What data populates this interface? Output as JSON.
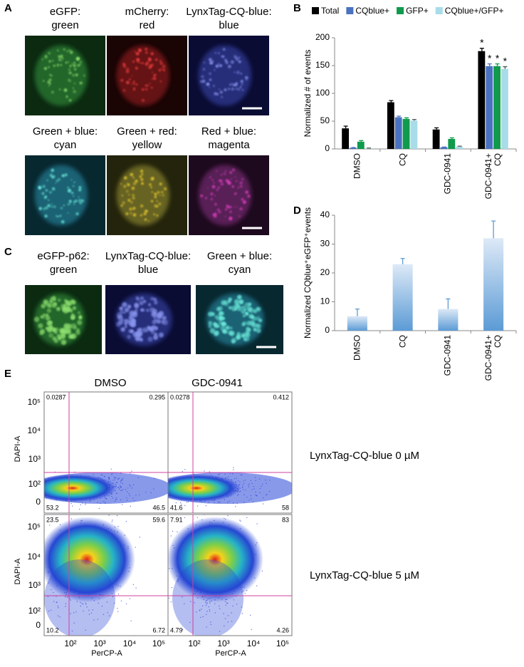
{
  "panels": {
    "a": "A",
    "b": "B",
    "c": "C",
    "d": "D",
    "e": "E"
  },
  "panel_a": {
    "labels": [
      [
        "eGFP:",
        "green"
      ],
      [
        "mCherry:",
        "red"
      ],
      [
        "LynxTag-CQ-blue:",
        "blue"
      ],
      [
        "Green + blue:",
        "cyan"
      ],
      [
        "Green + red:",
        "yellow"
      ],
      [
        "Red + blue:",
        "magenta"
      ]
    ]
  },
  "panel_c": {
    "labels": [
      [
        "eGFP-p62:",
        "green"
      ],
      [
        "LynxTag-CQ-blue:",
        "blue"
      ],
      [
        "Green + blue:",
        "cyan"
      ]
    ]
  },
  "chart_data": [
    {
      "type": "bar",
      "ylabel": "Normalized # of events",
      "categories": [
        "DMSO",
        "CQ",
        "GDC-0941",
        "GDC-0941+ CQ"
      ],
      "series": [
        {
          "name": "Total",
          "color": "#000000",
          "values": [
            37,
            84,
            35,
            176
          ],
          "errors": [
            4,
            3,
            3,
            5
          ],
          "annotations": [
            null,
            null,
            null,
            "*"
          ]
        },
        {
          "name": "CQblue+",
          "color": "#4a72c0",
          "values": [
            2,
            57,
            3,
            149
          ],
          "errors": [
            0.5,
            2,
            0.5,
            4
          ],
          "annotations": [
            null,
            null,
            null,
            "*"
          ]
        },
        {
          "name": "GFP+",
          "color": "#0f9a4c",
          "values": [
            13,
            54,
            18,
            149
          ],
          "errors": [
            2,
            2,
            2,
            4
          ],
          "annotations": [
            null,
            null,
            null,
            "*"
          ]
        },
        {
          "name": "CQblue+/GFP+",
          "color": "#a8dce8",
          "values": [
            1,
            51,
            4,
            144
          ],
          "errors": [
            0.5,
            2,
            1,
            4
          ],
          "annotations": [
            null,
            null,
            null,
            "*"
          ]
        }
      ],
      "ylim": [
        0,
        200
      ],
      "yticks": [
        0,
        50,
        100,
        150,
        200
      ],
      "grid": false
    },
    {
      "type": "bar",
      "ylabel": "Normalized CQblue⁺eGFP⁺events",
      "categories": [
        "DMSO",
        "CQ",
        "GDC-0941",
        "GDC-0941+ CQ"
      ],
      "values": [
        5,
        23,
        7.5,
        32
      ],
      "errors": [
        2.5,
        2,
        3.5,
        6
      ],
      "color": "#5b9bd5",
      "ylim": [
        0,
        40
      ],
      "yticks": [
        0,
        10,
        20,
        30,
        40
      ],
      "grid": false
    }
  ],
  "flow": {
    "columns": [
      "DMSO",
      "GDC-0941"
    ],
    "rows": [
      "LynxTag-CQ-blue 0 µM",
      "LynxTag-CQ-blue 5 µM"
    ],
    "x_label": "PerCP-A",
    "y_label": "DAPI-A",
    "x_ticks": [
      "10²",
      "10³",
      "10⁴",
      "10⁵"
    ],
    "y_ticks": [
      "10⁵",
      "10⁴",
      "10³",
      "10²",
      "0"
    ],
    "plots": [
      [
        "0.0287",
        "0.295",
        "53.2",
        "46.5"
      ],
      [
        "0.0278",
        "0.412",
        "41.6",
        "58"
      ],
      [
        "23.5",
        "59.6",
        "10.2",
        "6.72"
      ],
      [
        "7.91",
        "83",
        "4.79",
        "4.26"
      ]
    ]
  }
}
